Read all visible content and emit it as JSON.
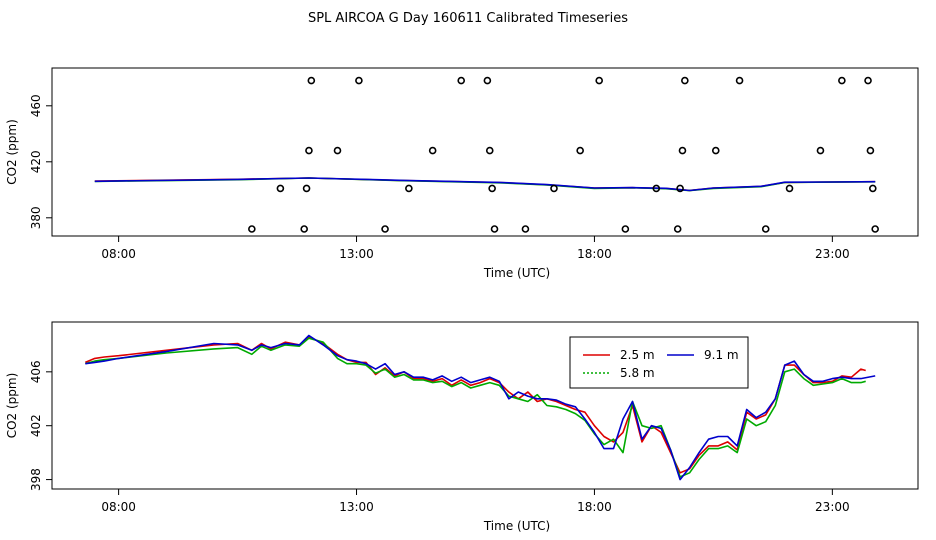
{
  "title": "SPL AIRCOA G  Day 160611  Calibrated Timeseries",
  "colors": {
    "s25": "#dd0000",
    "s58": "#00aa00",
    "s91": "#0000cc"
  },
  "chart_data": [
    {
      "type": "scatter+line",
      "xlabel": "Time (UTC)",
      "ylabel": "CO2 (ppm)",
      "xlim": [
        6.6,
        24.8
      ],
      "ylim": [
        367,
        487
      ],
      "x_ticks": [
        8,
        13,
        18,
        23
      ],
      "x_tick_labels": [
        "08:00",
        "13:00",
        "18:00",
        "23:00"
      ],
      "y_ticks": [
        380,
        420,
        460
      ],
      "y_tick_labels": [
        "380",
        "420",
        "460"
      ],
      "points": {
        "x": [
          10.8,
          11.4,
          11.9,
          11.95,
          12.0,
          12.05,
          12.6,
          13.05,
          13.6,
          14.1,
          14.6,
          15.2,
          15.75,
          15.8,
          15.85,
          15.9,
          16.55,
          17.15,
          17.7,
          18.1,
          18.65,
          19.3,
          19.75,
          19.8,
          19.85,
          19.9,
          20.55,
          21.05,
          21.6,
          22.1,
          22.75,
          23.2,
          23.75,
          23.8,
          23.85,
          23.9
        ],
        "y": [
          372,
          401,
          372,
          401,
          428,
          478,
          428,
          478,
          372,
          401,
          428,
          478,
          478,
          428,
          401,
          372,
          372,
          401,
          428,
          478,
          372,
          401,
          372,
          401,
          428,
          478,
          428,
          478,
          372,
          401,
          428,
          478,
          478,
          428,
          401,
          372
        ]
      },
      "series": [
        {
          "name": "2.5 m",
          "x": [
            7.5,
            10.5,
            12.0,
            14.0,
            16.0,
            17.0,
            18.0,
            18.8,
            19.5,
            20.0,
            20.5,
            21.5,
            22.0,
            23.0,
            23.9
          ],
          "y": [
            406.2,
            407.5,
            408.4,
            406.6,
            405.2,
            403.6,
            401.2,
            401.5,
            401.0,
            399.6,
            401.2,
            402.4,
            405.3,
            405.6,
            405.8
          ]
        },
        {
          "name": "5.8 m",
          "x": [
            7.5,
            10.5,
            12.0,
            14.0,
            16.0,
            17.0,
            18.0,
            18.8,
            19.5,
            20.0,
            20.5,
            21.5,
            22.0,
            23.0,
            23.9
          ],
          "y": [
            406.0,
            407.2,
            408.4,
            406.5,
            405.0,
            403.5,
            401.0,
            401.4,
            400.8,
            399.4,
            401.0,
            402.2,
            405.2,
            405.5,
            405.7
          ]
        },
        {
          "name": "9.1 m",
          "x": [
            7.5,
            10.5,
            12.0,
            14.0,
            16.0,
            17.0,
            18.0,
            18.8,
            19.5,
            20.0,
            20.5,
            21.5,
            22.0,
            23.0,
            23.9
          ],
          "y": [
            406.1,
            407.4,
            408.4,
            406.7,
            405.3,
            403.7,
            401.3,
            401.6,
            401.1,
            399.5,
            401.3,
            402.5,
            405.4,
            405.6,
            405.8
          ]
        }
      ]
    },
    {
      "type": "line",
      "xlabel": "Time (UTC)",
      "ylabel": "CO2 (ppm)",
      "xlim": [
        6.6,
        24.8
      ],
      "ylim": [
        397.3,
        409.7
      ],
      "x_ticks": [
        8,
        13,
        18,
        23
      ],
      "x_tick_labels": [
        "08:00",
        "13:00",
        "18:00",
        "23:00"
      ],
      "y_ticks": [
        398,
        402,
        406
      ],
      "y_tick_labels": [
        "398",
        "402",
        "406"
      ],
      "legend": {
        "position": "upper-middle",
        "entries": [
          "2.5 m",
          "9.1 m",
          "5.8 m"
        ]
      },
      "series": [
        {
          "name": "2.5 m",
          "x": [
            7.3,
            7.5,
            7.7,
            8.0,
            9.0,
            10.0,
            10.5,
            10.8,
            11.0,
            11.2,
            11.5,
            11.8,
            12.0,
            12.3,
            12.6,
            12.8,
            13.0,
            13.2,
            13.4,
            13.6,
            13.8,
            14.0,
            14.2,
            14.4,
            14.6,
            14.8,
            15.0,
            15.2,
            15.4,
            15.6,
            15.8,
            16.0,
            16.2,
            16.4,
            16.6,
            16.8,
            17.0,
            17.2,
            17.4,
            17.6,
            17.8,
            18.0,
            18.2,
            18.4,
            18.6,
            18.8,
            19.0,
            19.2,
            19.4,
            19.6,
            19.8,
            20.0,
            20.2,
            20.4,
            20.6,
            20.8,
            21.0,
            21.2,
            21.4,
            21.6,
            21.8,
            22.0,
            22.2,
            22.4,
            22.6,
            22.8,
            23.0,
            23.2,
            23.4,
            23.6,
            23.7
          ],
          "y": [
            406.7,
            407.0,
            407.1,
            407.2,
            407.6,
            408.0,
            408.1,
            407.6,
            408.1,
            407.7,
            408.2,
            408.0,
            408.6,
            408.1,
            407.3,
            406.9,
            406.7,
            406.7,
            405.8,
            406.3,
            405.7,
            406.0,
            405.5,
            405.5,
            405.3,
            405.5,
            405.0,
            405.4,
            405.0,
            405.2,
            405.5,
            405.2,
            404.5,
            404.0,
            404.5,
            403.8,
            404.0,
            403.8,
            403.5,
            403.2,
            403.0,
            402.0,
            401.2,
            400.8,
            401.5,
            403.5,
            400.8,
            402.0,
            401.5,
            400.0,
            398.5,
            398.8,
            399.8,
            400.5,
            400.5,
            400.8,
            400.2,
            403.0,
            402.5,
            402.8,
            404.0,
            406.5,
            406.5,
            405.8,
            405.2,
            405.2,
            405.3,
            405.7,
            405.6,
            406.2,
            406.1
          ]
        },
        {
          "name": "5.8 m",
          "x": [
            7.3,
            7.5,
            7.7,
            8.0,
            9.0,
            10.0,
            10.5,
            10.8,
            11.0,
            11.2,
            11.5,
            11.8,
            12.0,
            12.3,
            12.6,
            12.8,
            13.0,
            13.2,
            13.4,
            13.6,
            13.8,
            14.0,
            14.2,
            14.4,
            14.6,
            14.8,
            15.0,
            15.2,
            15.4,
            15.6,
            15.8,
            16.0,
            16.2,
            16.4,
            16.6,
            16.8,
            17.0,
            17.2,
            17.4,
            17.6,
            17.8,
            18.0,
            18.2,
            18.4,
            18.6,
            18.8,
            19.0,
            19.2,
            19.4,
            19.6,
            19.8,
            20.0,
            20.2,
            20.4,
            20.6,
            20.8,
            21.0,
            21.2,
            21.4,
            21.6,
            21.8,
            22.0,
            22.2,
            22.4,
            22.6,
            22.8,
            23.0,
            23.2,
            23.4,
            23.6,
            23.7
          ],
          "y": [
            406.6,
            406.8,
            406.9,
            407.0,
            407.4,
            407.7,
            407.8,
            407.3,
            407.9,
            407.6,
            408.0,
            407.9,
            408.5,
            408.2,
            407.0,
            406.6,
            406.6,
            406.5,
            405.9,
            406.2,
            405.6,
            405.8,
            405.4,
            405.4,
            405.2,
            405.3,
            404.9,
            405.2,
            404.8,
            405.0,
            405.2,
            405.0,
            404.2,
            404.0,
            403.8,
            404.3,
            403.5,
            403.4,
            403.2,
            402.9,
            402.4,
            401.4,
            400.6,
            401.0,
            400.0,
            403.8,
            402.0,
            401.8,
            402.0,
            400.2,
            398.2,
            398.5,
            399.5,
            400.3,
            400.3,
            400.5,
            400.0,
            402.5,
            402.0,
            402.3,
            403.5,
            406.0,
            406.2,
            405.5,
            405.0,
            405.1,
            405.2,
            405.5,
            405.2,
            405.2,
            405.3
          ]
        },
        {
          "name": "9.1 m",
          "x": [
            7.3,
            7.5,
            7.7,
            8.0,
            9.0,
            10.0,
            10.5,
            10.8,
            11.0,
            11.2,
            11.5,
            11.8,
            12.0,
            12.3,
            12.6,
            12.8,
            13.0,
            13.2,
            13.4,
            13.6,
            13.8,
            14.0,
            14.2,
            14.4,
            14.6,
            14.8,
            15.0,
            15.2,
            15.4,
            15.6,
            15.8,
            16.0,
            16.2,
            16.4,
            16.6,
            16.8,
            17.0,
            17.2,
            17.4,
            17.6,
            17.8,
            18.0,
            18.2,
            18.4,
            18.6,
            18.8,
            19.0,
            19.2,
            19.4,
            19.6,
            19.8,
            20.0,
            20.2,
            20.4,
            20.6,
            20.8,
            21.0,
            21.2,
            21.4,
            21.6,
            21.8,
            22.0,
            22.2,
            22.4,
            22.6,
            22.8,
            23.0,
            23.2,
            23.4,
            23.6,
            23.9
          ],
          "y": [
            406.6,
            406.7,
            406.8,
            407.0,
            407.5,
            408.1,
            408.0,
            407.6,
            408.0,
            407.8,
            408.1,
            408.0,
            408.7,
            408.0,
            407.2,
            406.9,
            406.8,
            406.6,
            406.2,
            406.6,
            405.8,
            406.0,
            405.6,
            405.6,
            405.4,
            405.7,
            405.3,
            405.6,
            405.2,
            405.4,
            405.6,
            405.3,
            404.0,
            404.5,
            404.2,
            404.0,
            404.0,
            403.9,
            403.6,
            403.4,
            402.5,
            401.5,
            400.3,
            400.3,
            402.5,
            403.8,
            401.0,
            402.0,
            401.8,
            400.2,
            398.0,
            398.9,
            400.0,
            401.0,
            401.2,
            401.2,
            400.5,
            403.2,
            402.6,
            403.0,
            404.0,
            406.5,
            406.8,
            405.8,
            405.3,
            405.3,
            405.5,
            405.6,
            405.5,
            405.5,
            405.7
          ]
        }
      ]
    }
  ]
}
